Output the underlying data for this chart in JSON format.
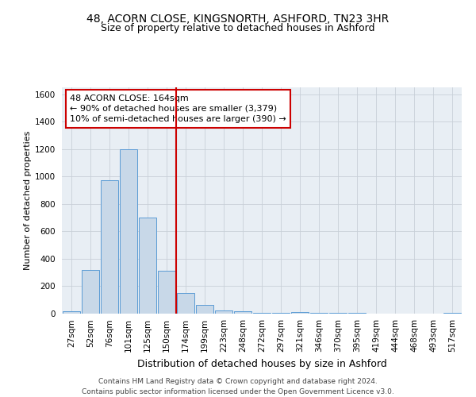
{
  "title": "48, ACORN CLOSE, KINGSNORTH, ASHFORD, TN23 3HR",
  "subtitle": "Size of property relative to detached houses in Ashford",
  "xlabel": "Distribution of detached houses by size in Ashford",
  "ylabel": "Number of detached properties",
  "footer_line1": "Contains HM Land Registry data © Crown copyright and database right 2024.",
  "footer_line2": "Contains public sector information licensed under the Open Government Licence v3.0.",
  "bar_labels": [
    "27sqm",
    "52sqm",
    "76sqm",
    "101sqm",
    "125sqm",
    "150sqm",
    "174sqm",
    "199sqm",
    "223sqm",
    "248sqm",
    "272sqm",
    "297sqm",
    "321sqm",
    "346sqm",
    "370sqm",
    "395sqm",
    "419sqm",
    "444sqm",
    "468sqm",
    "493sqm",
    "517sqm"
  ],
  "bar_values": [
    20,
    320,
    970,
    1200,
    700,
    310,
    150,
    65,
    25,
    15,
    5,
    5,
    12,
    3,
    3,
    8,
    2,
    2,
    2,
    2,
    8
  ],
  "bar_color": "#c8d8e8",
  "bar_edge_color": "#5b9bd5",
  "grid_color": "#c8d0d8",
  "background_color": "#e8eef4",
  "fig_background": "#ffffff",
  "ylim": [
    0,
    1650
  ],
  "yticks": [
    0,
    200,
    400,
    600,
    800,
    1000,
    1200,
    1400,
    1600
  ],
  "annotation_text": "48 ACORN CLOSE: 164sqm\n← 90% of detached houses are smaller (3,379)\n10% of semi-detached houses are larger (390) →",
  "vline_color": "#cc0000",
  "box_color": "#cc0000",
  "title_fontsize": 10,
  "subtitle_fontsize": 9,
  "tick_fontsize": 7.5,
  "ylabel_fontsize": 8,
  "xlabel_fontsize": 9,
  "annotation_fontsize": 8,
  "footer_fontsize": 6.5
}
